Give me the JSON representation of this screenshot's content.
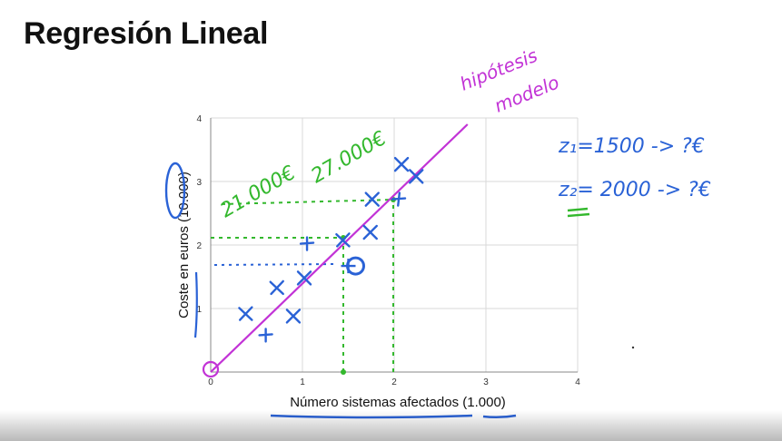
{
  "slide": {
    "title": "Regresión Lineal"
  },
  "chart_data": {
    "type": "scatter",
    "xlabel": "Número sistemas afectados (1.000)",
    "ylabel": "Coste en euros (10.000)",
    "xlim": [
      0,
      4
    ],
    "ylim": [
      0,
      4
    ],
    "x_ticks": [
      0,
      1,
      2,
      3,
      4
    ],
    "y_ticks": [
      1,
      2,
      3,
      4
    ],
    "grid": true,
    "series": [
      {
        "name": "",
        "marker": "x",
        "color": "#2a62d6",
        "x": [
          0.38,
          0.6,
          0.9,
          0.72,
          1.02,
          1.05,
          1.44,
          1.74,
          1.76,
          2.05,
          2.08,
          2.24
        ],
        "y": [
          0.92,
          0.58,
          0.88,
          1.33,
          1.48,
          2.02,
          2.08,
          2.2,
          2.72,
          2.72,
          3.27,
          3.08
        ]
      }
    ],
    "model_line": {
      "x": [
        0,
        2.8
      ],
      "y": [
        0,
        3.9
      ],
      "color": "#c233d6"
    },
    "highlight_point": {
      "x": 1.5,
      "y": 1.67
    },
    "annotations": [
      {
        "text": "hipótesis",
        "color": "#c233d6"
      },
      {
        "text": "modelo",
        "color": "#c233d6"
      },
      {
        "text": "21.000€",
        "color": "#33b82d"
      },
      {
        "text": "27.000€",
        "color": "#33b82d"
      },
      {
        "text": "z₁=1500 -> ?€",
        "color": "#2a62d6"
      },
      {
        "text": "z₂= 2000 -> ?€",
        "color": "#2a62d6"
      }
    ]
  }
}
